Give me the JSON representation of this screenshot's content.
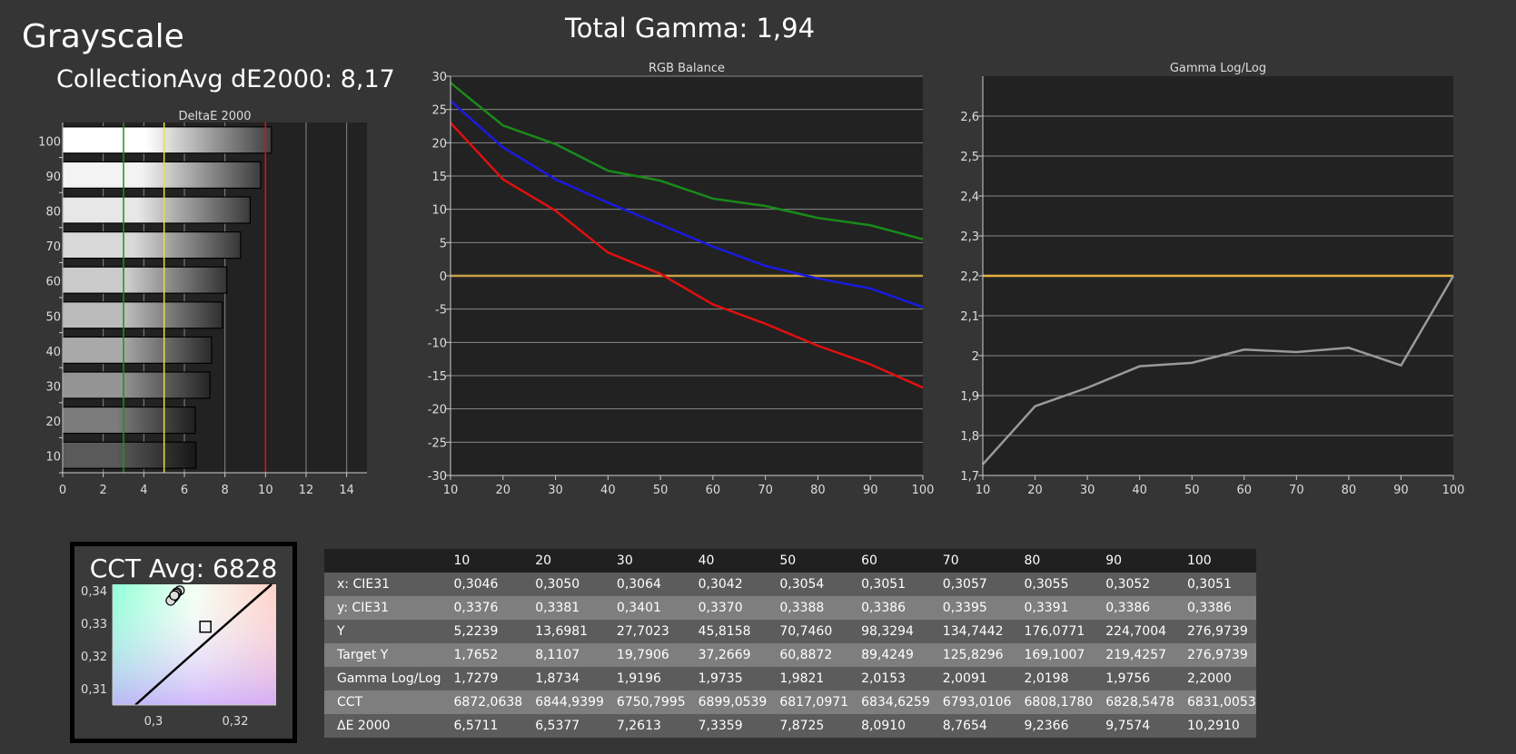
{
  "page": {
    "title": "Grayscale",
    "collection_avg": "CollectionAvg dE2000: 8,17",
    "total_gamma": "Total Gamma: 1,94",
    "cct_avg": "CCT Avg: 6828"
  },
  "chart_data": [
    {
      "type": "bar",
      "orientation": "horizontal",
      "title": "DeltaE 2000",
      "categories": [
        "100",
        "90",
        "80",
        "70",
        "60",
        "50",
        "40",
        "30",
        "20",
        "10"
      ],
      "values": [
        10.29,
        9.76,
        9.24,
        8.77,
        8.09,
        7.87,
        7.34,
        7.26,
        6.54,
        6.57
      ],
      "xlim": [
        0,
        15
      ],
      "xticks": [
        "0",
        "2",
        "4",
        "6",
        "8",
        "10",
        "12",
        "14"
      ],
      "grid": true,
      "reference_lines": [
        {
          "value": 3,
          "color": "#1f8f1f"
        },
        {
          "value": 5,
          "color": "#e6e23a"
        },
        {
          "value": 10,
          "color": "#e01010"
        }
      ]
    },
    {
      "type": "line",
      "title": "RGB Balance",
      "x": [
        10,
        20,
        30,
        40,
        50,
        60,
        70,
        80,
        90,
        100
      ],
      "series": [
        {
          "color": "#e01010",
          "values": [
            23,
            14.5,
            9.8,
            3.5,
            0.3,
            -4.3,
            -7.2,
            -10.5,
            -13.3,
            -16.8
          ]
        },
        {
          "color": "#1a8a1a",
          "values": [
            29,
            22.6,
            19.8,
            15.8,
            14.3,
            11.6,
            10.5,
            8.7,
            7.6,
            5.5
          ]
        },
        {
          "color": "#1a1ae0",
          "values": [
            26.3,
            19.3,
            14.5,
            11,
            7.7,
            4.4,
            1.5,
            -0.4,
            -1.9,
            -4.7
          ]
        }
      ],
      "reference": {
        "value": 0,
        "color": "#c8a048"
      },
      "xlim": [
        10,
        100
      ],
      "ylim": [
        -30,
        30
      ],
      "xticks": [
        "10",
        "20",
        "30",
        "40",
        "50",
        "60",
        "70",
        "80",
        "90",
        "100"
      ],
      "yticks": [
        "30",
        "25",
        "20",
        "15",
        "10",
        "5",
        "0",
        "-5",
        "-10",
        "-15",
        "-20",
        "-25",
        "-30"
      ],
      "grid": true
    },
    {
      "type": "line",
      "title": "Gamma Log/Log",
      "x": [
        10,
        20,
        30,
        40,
        50,
        60,
        70,
        80,
        90,
        100
      ],
      "series": [
        {
          "color": "#9a9a9a",
          "values": [
            1.7279,
            1.8734,
            1.9196,
            1.9735,
            1.9821,
            2.0153,
            2.0091,
            2.0198,
            1.9756,
            2.2
          ]
        }
      ],
      "reference": {
        "value": 2.2,
        "color": "#e8b040"
      },
      "xlim": [
        10,
        100
      ],
      "ylim": [
        1.7,
        2.7
      ],
      "xticks": [
        "10",
        "20",
        "30",
        "40",
        "50",
        "60",
        "70",
        "80",
        "90",
        "100"
      ],
      "yticks": [
        "2,6",
        "2,5",
        "2,4",
        "2,3",
        "2,2",
        "2,1",
        "2",
        "1,9",
        "1,8",
        "1,7"
      ],
      "grid": true
    },
    {
      "type": "scatter",
      "xlim": [
        0.29,
        0.33
      ],
      "ylim": [
        0.305,
        0.342
      ],
      "xticks": [
        "0,3",
        "0,32"
      ],
      "yticks": [
        "0,34",
        "0,33",
        "0,32",
        "0,31"
      ],
      "points": [
        {
          "x": 0.3046,
          "y": 0.3376
        },
        {
          "x": 0.305,
          "y": 0.3381
        },
        {
          "x": 0.3064,
          "y": 0.3401
        },
        {
          "x": 0.3042,
          "y": 0.337
        },
        {
          "x": 0.3054,
          "y": 0.3388
        },
        {
          "x": 0.3051,
          "y": 0.3386
        },
        {
          "x": 0.3057,
          "y": 0.3395
        },
        {
          "x": 0.3055,
          "y": 0.3391
        },
        {
          "x": 0.3052,
          "y": 0.3386
        },
        {
          "x": 0.3051,
          "y": 0.3386
        }
      ],
      "target": {
        "x": 0.3127,
        "y": 0.329
      }
    },
    {
      "type": "table",
      "columns": [
        "10",
        "20",
        "30",
        "40",
        "50",
        "60",
        "70",
        "80",
        "90",
        "100"
      ],
      "rows": [
        {
          "label": "x: CIE31",
          "values": [
            "0,3046",
            "0,3050",
            "0,3064",
            "0,3042",
            "0,3054",
            "0,3051",
            "0,3057",
            "0,3055",
            "0,3052",
            "0,3051"
          ]
        },
        {
          "label": "y: CIE31",
          "values": [
            "0,3376",
            "0,3381",
            "0,3401",
            "0,3370",
            "0,3388",
            "0,3386",
            "0,3395",
            "0,3391",
            "0,3386",
            "0,3386"
          ]
        },
        {
          "label": "Y",
          "values": [
            "5,2239",
            "13,6981",
            "27,7023",
            "45,8158",
            "70,7460",
            "98,3294",
            "134,7442",
            "176,0771",
            "224,7004",
            "276,9739"
          ]
        },
        {
          "label": "Target Y",
          "values": [
            "1,7652",
            "8,1107",
            "19,7906",
            "37,2669",
            "60,8872",
            "89,4249",
            "125,8296",
            "169,1007",
            "219,4257",
            "276,9739"
          ]
        },
        {
          "label": "Gamma Log/Log",
          "values": [
            "1,7279",
            "1,8734",
            "1,9196",
            "1,9735",
            "1,9821",
            "2,0153",
            "2,0091",
            "2,0198",
            "1,9756",
            "2,2000"
          ]
        },
        {
          "label": "CCT",
          "values": [
            "6872,0638",
            "6844,9399",
            "6750,7995",
            "6899,0539",
            "6817,0971",
            "6834,6259",
            "6793,0106",
            "6808,1780",
            "6828,5478",
            "6831,0053"
          ]
        },
        {
          "label": "ΔE 2000",
          "values": [
            "6,5711",
            "6,5377",
            "7,2613",
            "7,3359",
            "7,8725",
            "8,0910",
            "8,7654",
            "9,2366",
            "9,7574",
            "10,2910"
          ]
        }
      ]
    }
  ]
}
